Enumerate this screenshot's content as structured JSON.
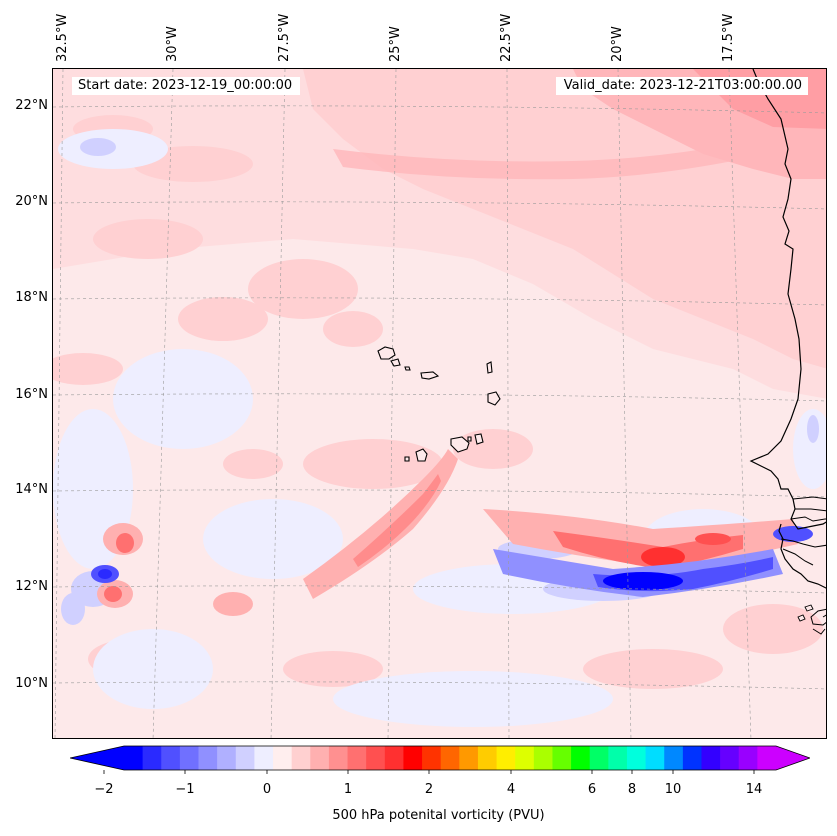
{
  "header": {
    "start_date": "Start date: 2023-12-19_00:00:00",
    "valid_date": "Valid_date: 2023-12-21T03:00:00.00"
  },
  "axes": {
    "lon_labels": [
      "32.5°W",
      "30°W",
      "27.5°W",
      "25°W",
      "22.5°W",
      "20°W",
      "17.5°W"
    ],
    "lat_labels": [
      "22°N",
      "20°N",
      "18°N",
      "16°N",
      "14°N",
      "12°N",
      "10°N"
    ]
  },
  "colorbar": {
    "label": "500 hPa potenital vorticity (PVU)",
    "ticks": [
      "−2",
      "−1",
      "0",
      "1",
      "2",
      "4",
      "6",
      "8",
      "10",
      "14"
    ],
    "colors": [
      "#0000ff",
      "#2a2aff",
      "#5050ff",
      "#7070ff",
      "#9090ff",
      "#b0b0ff",
      "#d0d0ff",
      "#eeeeff",
      "#ffeeee",
      "#ffd0d0",
      "#ffb0b0",
      "#ff9090",
      "#ff7070",
      "#ff5050",
      "#ff3030",
      "#ff0000",
      "#ff3300",
      "#ff6600",
      "#ff9900",
      "#ffcc00",
      "#ffee00",
      "#ddff00",
      "#aaff00",
      "#66ff00",
      "#00ff00",
      "#00ff66",
      "#00ffaa",
      "#00ffdd",
      "#00ddff",
      "#0088ff",
      "#0033ff",
      "#3300ff",
      "#6600ff",
      "#9900ff",
      "#cc00ff"
    ],
    "under_color": "#0000ff",
    "over_color": "#cc00ff"
  },
  "map": {
    "background_color": "#fde9ea",
    "coastline_color": "#000000"
  }
}
